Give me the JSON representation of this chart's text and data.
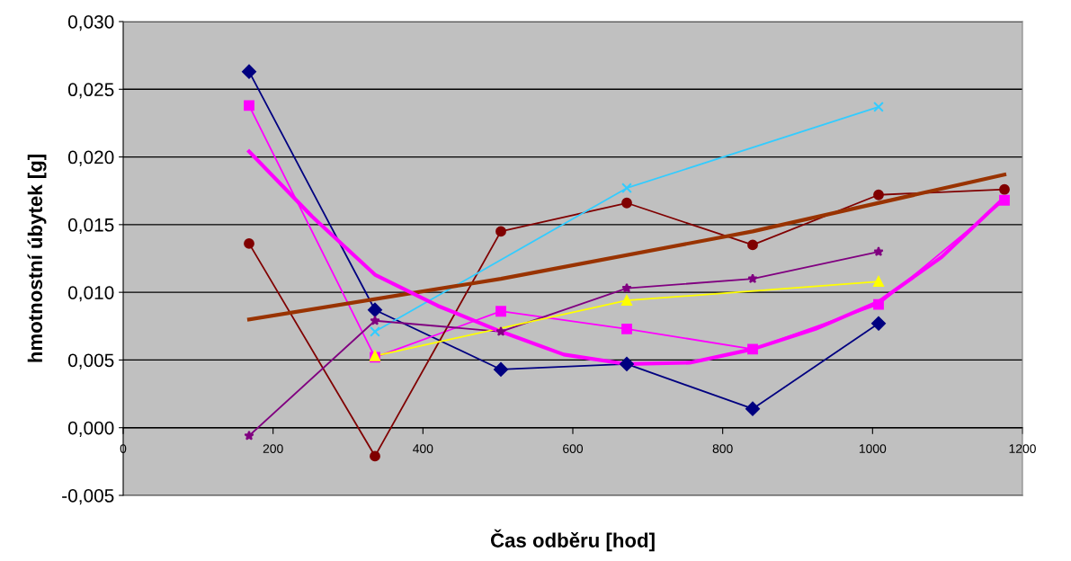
{
  "chart_data": {
    "type": "line",
    "xlabel": "Čas odběru [hod]",
    "ylabel": "hmotnostní úbytek [g]",
    "xlim": [
      0,
      1200
    ],
    "xticks": [
      0,
      200,
      400,
      600,
      800,
      1000,
      1200
    ],
    "ylim": [
      -0.005,
      0.03
    ],
    "yticks": [
      {
        "value": -0.005,
        "label": "-0,005"
      },
      {
        "value": 0,
        "label": "0,000"
      },
      {
        "value": 0.005,
        "label": "0,005"
      },
      {
        "value": 0.01,
        "label": "0,010"
      },
      {
        "value": 0.015,
        "label": "0,015"
      },
      {
        "value": 0.02,
        "label": "0,020"
      },
      {
        "value": 0.025,
        "label": "0,025"
      },
      {
        "value": 0.03,
        "label": "0,030"
      }
    ],
    "grid": "y",
    "legend": false,
    "series": [
      {
        "color": "#000080",
        "marker": "diamond",
        "x": [
          168,
          336,
          504,
          672,
          840,
          1008
        ],
        "values": [
          0.0263,
          0.0087,
          0.0043,
          0.0047,
          0.0014,
          0.0077
        ]
      },
      {
        "color": "#ff00ff",
        "marker": "square",
        "x": [
          168,
          336,
          504,
          672,
          840,
          1008,
          1176
        ],
        "values": [
          0.0238,
          0.0052,
          0.0086,
          0.0073,
          0.0058,
          0.0091,
          0.0168
        ]
      },
      {
        "color": "#800000",
        "marker": "circle",
        "x": [
          168,
          336,
          504,
          672,
          840,
          1008,
          1176
        ],
        "values": [
          0.0136,
          -0.0021,
          0.0145,
          0.0166,
          0.0135,
          0.0172,
          0.0176
        ]
      },
      {
        "color": "#33ccff",
        "marker": "cross",
        "x": [
          336,
          672,
          1008
        ],
        "values": [
          0.0071,
          0.0177,
          0.0237
        ]
      },
      {
        "color": "#800080",
        "marker": "star",
        "x": [
          168,
          336,
          504,
          672,
          840,
          1008
        ],
        "values": [
          -0.0006,
          0.0079,
          0.0071,
          0.0103,
          0.011,
          0.013
        ]
      },
      {
        "color": "#ffff00",
        "marker": "triangle",
        "x": [
          336,
          672,
          1008
        ],
        "values": [
          0.0053,
          0.0094,
          0.0108
        ]
      },
      {
        "color": "#993300",
        "marker": "none",
        "x": [
          168,
          504,
          840,
          1176
        ],
        "values": [
          0.008,
          0.011,
          0.0145,
          0.0187
        ]
      },
      {
        "color": "#ff00ff",
        "marker": "none",
        "x": [
          168,
          252,
          336,
          420,
          504,
          588,
          672,
          756,
          840,
          924,
          1008,
          1092,
          1176
        ],
        "values": [
          0.0204,
          0.0156,
          0.0113,
          0.009,
          0.0071,
          0.0054,
          0.0047,
          0.0048,
          0.0058,
          0.0073,
          0.0093,
          0.0126,
          0.017
        ]
      }
    ]
  }
}
